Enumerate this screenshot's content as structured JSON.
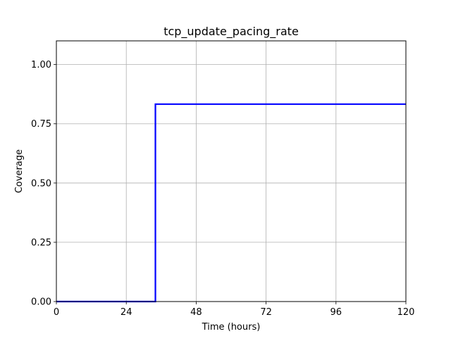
{
  "chart_data": {
    "type": "line",
    "title": "tcp_update_pacing_rate",
    "xlabel": "Time (hours)",
    "ylabel": "Coverage",
    "xlim": [
      0,
      120
    ],
    "ylim": [
      0,
      1.1
    ],
    "xticks": [
      0,
      24,
      48,
      72,
      96,
      120
    ],
    "xtick_labels": [
      "0",
      "24",
      "48",
      "72",
      "96",
      "120"
    ],
    "yticks": [
      0,
      0.25,
      0.5,
      0.75,
      1.0
    ],
    "ytick_labels": [
      "0.00",
      "0.25",
      "0.50",
      "0.75",
      "1.00"
    ],
    "grid": true,
    "step": true,
    "series": [
      {
        "color": "#0000ff",
        "x": [
          0,
          34,
          34,
          120
        ],
        "y": [
          0,
          0,
          0.833,
          0.833
        ]
      }
    ]
  }
}
